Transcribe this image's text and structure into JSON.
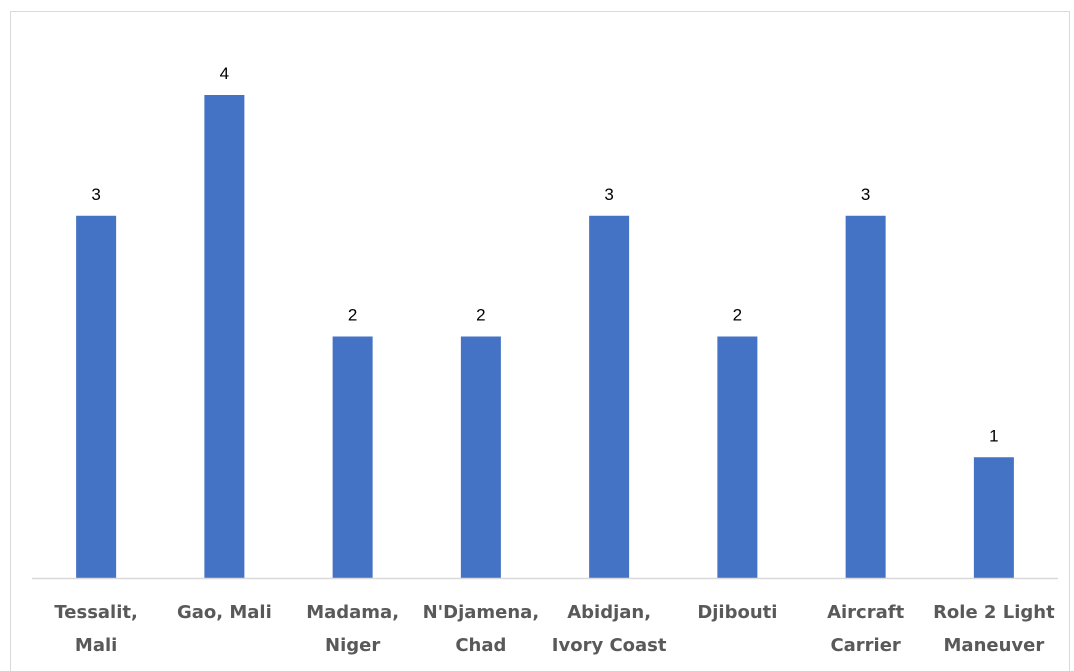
{
  "chart_data": {
    "type": "bar",
    "title": "",
    "xlabel": "",
    "ylabel": "",
    "categories": [
      [
        "Tessalit,",
        "Mali"
      ],
      [
        "Gao, Mali"
      ],
      [
        "Madama,",
        "Niger"
      ],
      [
        "N'Djamena,",
        "Chad"
      ],
      [
        "Abidjan,",
        "Ivory Coast"
      ],
      [
        "Djibouti"
      ],
      [
        "Aircraft",
        "Carrier"
      ],
      [
        "Role 2 Light",
        "Maneuver"
      ]
    ],
    "values": [
      3,
      4,
      2,
      2,
      3,
      2,
      3,
      1
    ],
    "data_labels": [
      "3",
      "4",
      "2",
      "2",
      "3",
      "2",
      "3",
      "1"
    ],
    "ylim": [
      0,
      4
    ],
    "grid": false,
    "legend": "none",
    "bar_color": "#4472c4",
    "axis_color": "#d9d9d9",
    "label_color": "#595959"
  }
}
